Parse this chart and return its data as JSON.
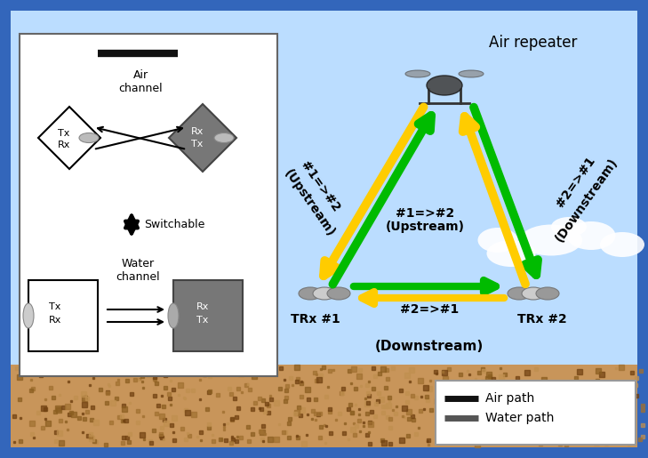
{
  "bg_outer": "#3366bb",
  "bg_sky_top": "#99ccee",
  "bg_sky_bottom": "#bbddff",
  "bg_ground": "#c8955a",
  "bg_inset": "#ffffff",
  "arrow_green": "#00bb00",
  "arrow_yellow": "#ffcc00",
  "text_dark": "#000000",
  "text_white": "#ffffff",
  "legend_bg": "#ffffff",
  "legend_border": "#999999",
  "air_path_color": "#111111",
  "water_path_color": "#555555",
  "title": "Air repeater",
  "label_trx1": "TRx #1",
  "label_trx2": "TRx #2",
  "label_switchable": "Switchable",
  "label_air_channel": "Air\nchannel",
  "label_water_channel": "Water\nchannel",
  "label_air_path": "Air path",
  "label_water_path": "Water path",
  "label_upstream_inner": "#1=>#2\n(Upstream)",
  "label_downstream_inner": "#2=>#1",
  "label_downstream_bottom": "(Downstream)"
}
